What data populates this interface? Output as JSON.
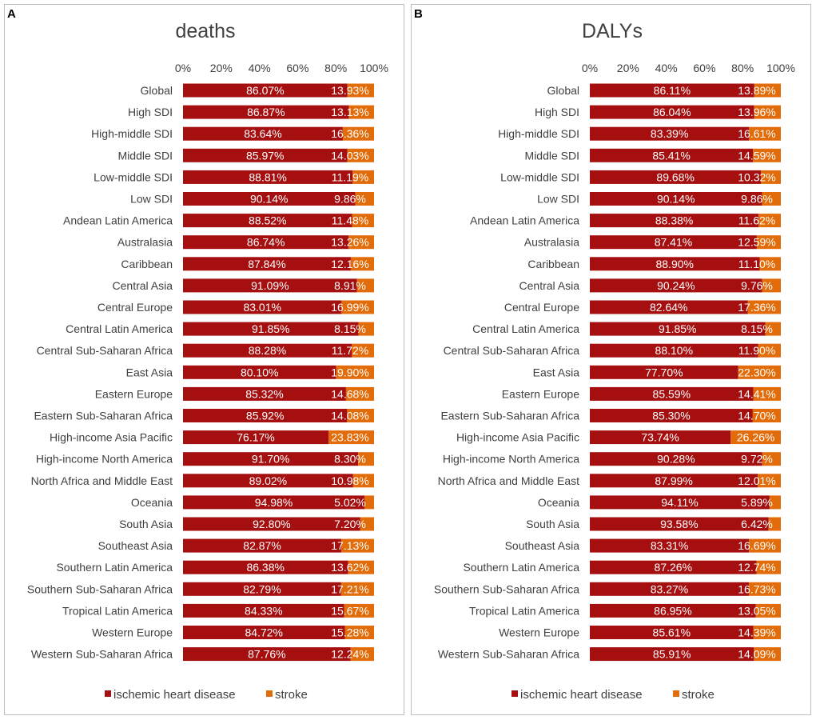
{
  "legend": {
    "ihd_label": "ischemic heart disease",
    "stroke_label": "stroke"
  },
  "colors": {
    "ihd": "#A50F0F",
    "stroke": "#E36C0A",
    "frame": "#BFBFBF",
    "text": "#404040",
    "label_text": "#FFFFFF"
  },
  "chart_data": [
    {
      "panel_letter": "A",
      "type": "bar",
      "orientation": "horizontal",
      "stacked": true,
      "title": "deaths",
      "x_ticks": [
        "0%",
        "20%",
        "40%",
        "60%",
        "80%",
        "100%"
      ],
      "xlim": [
        0,
        100
      ],
      "categories": [
        "Global",
        "High SDI",
        "High-middle SDI",
        "Middle SDI",
        "Low-middle SDI",
        "Low SDI",
        "Andean Latin America",
        "Australasia",
        "Caribbean",
        "Central Asia",
        "Central Europe",
        "Central Latin America",
        "Central Sub-Saharan Africa",
        "East Asia",
        "Eastern Europe",
        "Eastern Sub-Saharan Africa",
        "High-income Asia Pacific",
        "High-income North America",
        "North Africa and Middle East",
        "Oceania",
        "South Asia",
        "Southeast Asia",
        "Southern Latin America",
        "Southern Sub-Saharan Africa",
        "Tropical Latin America",
        "Western Europe",
        "Western Sub-Saharan Africa"
      ],
      "series": [
        {
          "name": "ischemic heart disease",
          "color": "#A50F0F",
          "values": [
            86.07,
            86.87,
            83.64,
            85.97,
            88.81,
            90.14,
            88.52,
            86.74,
            87.84,
            91.09,
            83.01,
            91.85,
            88.28,
            80.1,
            85.32,
            85.92,
            76.17,
            91.7,
            89.02,
            94.98,
            92.8,
            82.87,
            86.38,
            82.79,
            84.33,
            84.72,
            87.76
          ],
          "labels": [
            "86.07%",
            "86.87%",
            "83.64%",
            "85.97%",
            "88.81%",
            "90.14%",
            "88.52%",
            "86.74%",
            "87.84%",
            "91.09%",
            "83.01%",
            "91.85%",
            "88.28%",
            "80.10%",
            "85.32%",
            "85.92%",
            "76.17%",
            "91.70%",
            "89.02%",
            "94.98%",
            "92.80%",
            "82.87%",
            "86.38%",
            "82.79%",
            "84.33%",
            "84.72%",
            "87.76%"
          ]
        },
        {
          "name": "stroke",
          "color": "#E36C0A",
          "values": [
            13.93,
            13.13,
            16.36,
            14.03,
            11.19,
            9.86,
            11.48,
            13.26,
            12.16,
            8.91,
            16.99,
            8.15,
            11.72,
            19.9,
            14.68,
            14.08,
            23.83,
            8.3,
            10.98,
            5.02,
            7.2,
            17.13,
            13.62,
            17.21,
            15.67,
            15.28,
            12.24
          ],
          "labels": [
            "13.93%",
            "13.13%",
            "16.36%",
            "14.03%",
            "11.19%",
            "9.86%",
            "11.48%",
            "13.26%",
            "12.16%",
            "8.91%",
            "16.99%",
            "8.15%",
            "11.72%",
            "19.90%",
            "14.68%",
            "14.08%",
            "23.83%",
            "8.30%",
            "10.98%",
            "5.02%",
            "7.20%",
            "17.13%",
            "13.62%",
            "17.21%",
            "15.67%",
            "15.28%",
            "12.24%"
          ]
        }
      ]
    },
    {
      "panel_letter": "B",
      "type": "bar",
      "orientation": "horizontal",
      "stacked": true,
      "title": "DALYs",
      "x_ticks": [
        "0%",
        "20%",
        "40%",
        "60%",
        "80%",
        "100%"
      ],
      "xlim": [
        0,
        100
      ],
      "categories": [
        "Global",
        "High SDI",
        "High-middle SDI",
        "Middle SDI",
        "Low-middle SDI",
        "Low SDI",
        "Andean Latin America",
        "Australasia",
        "Caribbean",
        "Central Asia",
        "Central Europe",
        "Central Latin America",
        "Central Sub-Saharan Africa",
        "East Asia",
        "Eastern Europe",
        "Eastern Sub-Saharan Africa",
        "High-income Asia Pacific",
        "High-income North America",
        "North Africa and Middle East",
        "Oceania",
        "South Asia",
        "Southeast Asia",
        "Southern Latin America",
        "Southern Sub-Saharan Africa",
        "Tropical Latin America",
        "Western Europe",
        "Western Sub-Saharan Africa"
      ],
      "series": [
        {
          "name": "ischemic heart disease",
          "color": "#A50F0F",
          "values": [
            86.11,
            86.04,
            83.39,
            85.41,
            89.68,
            90.14,
            88.38,
            87.41,
            88.9,
            90.24,
            82.64,
            91.85,
            88.1,
            77.7,
            85.59,
            85.3,
            73.74,
            90.28,
            87.99,
            94.11,
            93.58,
            83.31,
            87.26,
            83.27,
            86.95,
            85.61,
            85.91
          ],
          "labels": [
            "86.11%",
            "86.04%",
            "83.39%",
            "85.41%",
            "89.68%",
            "90.14%",
            "88.38%",
            "87.41%",
            "88.90%",
            "90.24%",
            "82.64%",
            "91.85%",
            "88.10%",
            "77.70%",
            "85.59%",
            "85.30%",
            "73.74%",
            "90.28%",
            "87.99%",
            "94.11%",
            "93.58%",
            "83.31%",
            "87.26%",
            "83.27%",
            "86.95%",
            "85.61%",
            "85.91%"
          ]
        },
        {
          "name": "stroke",
          "color": "#E36C0A",
          "values": [
            13.89,
            13.96,
            16.61,
            14.59,
            10.32,
            9.86,
            11.62,
            12.59,
            11.1,
            9.76,
            17.36,
            8.15,
            11.9,
            22.3,
            14.41,
            14.7,
            26.26,
            9.72,
            12.01,
            5.89,
            6.42,
            16.69,
            12.74,
            16.73,
            13.05,
            14.39,
            14.09
          ],
          "labels": [
            "13.89%",
            "13.96%",
            "16.61%",
            "14.59%",
            "10.32%",
            "9.86%",
            "11.62%",
            "12.59%",
            "11.10%",
            "9.76%",
            "17.36%",
            "8.15%",
            "11.90%",
            "22.30%",
            "14.41%",
            "14.70%",
            "26.26%",
            "9.72%",
            "12.01%",
            "5.89%",
            "6.42%",
            "16.69%",
            "12.74%",
            "16.73%",
            "13.05%",
            "14.39%",
            "14.09%"
          ]
        }
      ]
    }
  ]
}
